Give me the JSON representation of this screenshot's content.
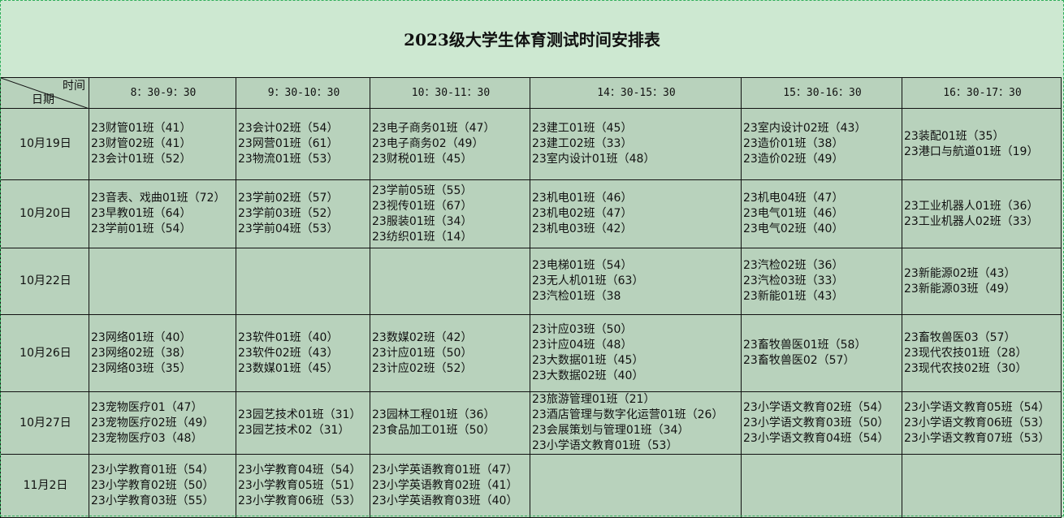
{
  "title": "2023级大学生体育测试时间安排表",
  "corner": {
    "top_label": "时间",
    "bottom_label": "日期"
  },
  "time_slots": [
    "8：30-9：30",
    "9：30-10：30",
    "10：30-11：30",
    "14：30-15：30",
    "15：30-16：30",
    "16：30-17：30"
  ],
  "rows": [
    {
      "date": "10月19日",
      "cells": [
        [
          "23财管01班（41）",
          "23财管02班（41）",
          "23会计01班（52）"
        ],
        [
          "23会计02班（54）",
          "23网营01班（61）",
          "23物流01班（53）"
        ],
        [
          "23电子商务01班（47）",
          "23电子商务02（49）",
          "23财税01班（45）"
        ],
        [
          "23建工01班（45）",
          "23建工02班（33）",
          "23室内设计01班（48）"
        ],
        [
          "23室内设计02班（43）",
          "23造价01班（38）",
          "23造价02班（49）"
        ],
        [
          "23装配01班（35）",
          "23港口与航道01班（19）"
        ]
      ]
    },
    {
      "date": "10月20日",
      "cells": [
        [
          "23音表、戏曲01班（72）",
          "23早教01班（64）",
          "23学前01班（54）"
        ],
        [
          "23学前02班（57）",
          "23学前03班（52）",
          "23学前04班（53）"
        ],
        [
          "23学前05班（55）",
          "23视传01班（67）",
          "23服装01班（34）",
          "23纺织01班（14）"
        ],
        [
          "23机电01班（46）",
          "23机电02班（47）",
          "23机电03班（42）"
        ],
        [
          "23机电04班（47）",
          "23电气01班（46）",
          "23电气02班（40）"
        ],
        [
          "23工业机器人01班（36）",
          "23工业机器人02班（33）"
        ]
      ]
    },
    {
      "date": "10月22日",
      "cells": [
        [],
        [],
        [],
        [
          "23电梯01班（54）",
          "23无人机01班（63）",
          "23汽检01班（38"
        ],
        [
          "23汽检02班（36）",
          "23汽检03班（33）",
          "23新能01班（43）"
        ],
        [
          "23新能源02班（43）",
          "23新能源03班（49）"
        ]
      ]
    },
    {
      "date": "10月26日",
      "cells": [
        [
          "23网络01班（40）",
          "23网络02班（38）",
          "23网络03班（35）"
        ],
        [
          "23软件01班（40）",
          "23软件02班（43）",
          "23数媒01班（45）"
        ],
        [
          "23数媒02班（42）",
          "23计应01班（50）",
          "23计应02班（52）"
        ],
        [
          "23计应03班（50）",
          "23计应04班（48）",
          "23大数据01班（45）",
          "23大数据02班（40）"
        ],
        [
          "23畜牧兽医01班（58）",
          "23畜牧兽医02（57）"
        ],
        [
          "23畜牧兽医03（57）",
          "23现代农技01班（28）",
          "23现代农技02班（30）"
        ]
      ]
    },
    {
      "date": "10月27日",
      "cells": [
        [
          "23宠物医疗01（47）",
          "23宠物医疗02班（49）",
          "23宠物医疗03（48）"
        ],
        [
          "23园艺技术01班（31）",
          "23园艺技术02（31）"
        ],
        [
          "23园林工程01班（36）",
          "23食品加工01班（50）"
        ],
        [
          "23旅游管理01班（21）",
          "23酒店管理与数字化运营01班（26）",
          "23会展策划与管理01班（34）",
          "23小学语文教育01班（53）"
        ],
        [
          "23小学语文教育02班（54）",
          "23小学语文教育03班（50）",
          "23小学语文教育04班（54）"
        ],
        [
          "23小学语文教育05班（54）",
          "23小学语文教育06班（53）",
          "23小学语文教育07班（53）"
        ]
      ]
    },
    {
      "date": "11月2日",
      "cells": [
        [
          "23小学教育01班（54）",
          "23小学教育02班（50）",
          "23小学教育03班（55）"
        ],
        [
          "23小学教育04班（54）",
          "23小学教育05班（51）",
          "23小学教育06班（53）"
        ],
        [
          "23小学英语教育01班（47）",
          "23小学英语教育02班（41）",
          "23小学英语教育03班（40）"
        ],
        [],
        [],
        []
      ]
    }
  ],
  "colors": {
    "title_bg": "#cde8d1",
    "cell_bg": "#b8d2bc",
    "border": "#111111",
    "selection": "#2fae5a"
  }
}
